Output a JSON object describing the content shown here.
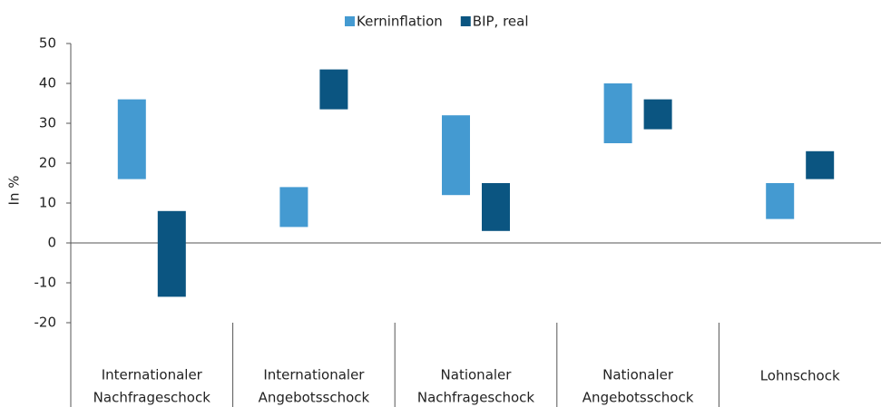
{
  "chart_data": {
    "type": "floating_bar",
    "categories": [
      [
        "Internationaler",
        "Nachfrageschock"
      ],
      [
        "Internationaler",
        "Angebotsschock"
      ],
      [
        "Nationaler",
        "Nachfrageschock"
      ],
      [
        "Nationaler",
        "Angebotsschock"
      ],
      [
        "Lohnschock"
      ]
    ],
    "series": [
      {
        "name": "Kerninflation",
        "color": "#449ad1",
        "low": [
          16,
          4,
          12,
          25,
          6
        ],
        "high": [
          36,
          14,
          32,
          40,
          15
        ]
      },
      {
        "name": "BIP, real",
        "color": "#0b5581",
        "low": [
          -13.5,
          33.5,
          3,
          28.5,
          16
        ],
        "high": [
          8,
          43.5,
          15,
          36,
          23
        ]
      }
    ],
    "ylabel": "In %",
    "ylim": [
      -20,
      50
    ],
    "yticks": [
      -20,
      -10,
      0,
      10,
      20,
      30,
      40,
      50
    ],
    "legend": "top"
  }
}
